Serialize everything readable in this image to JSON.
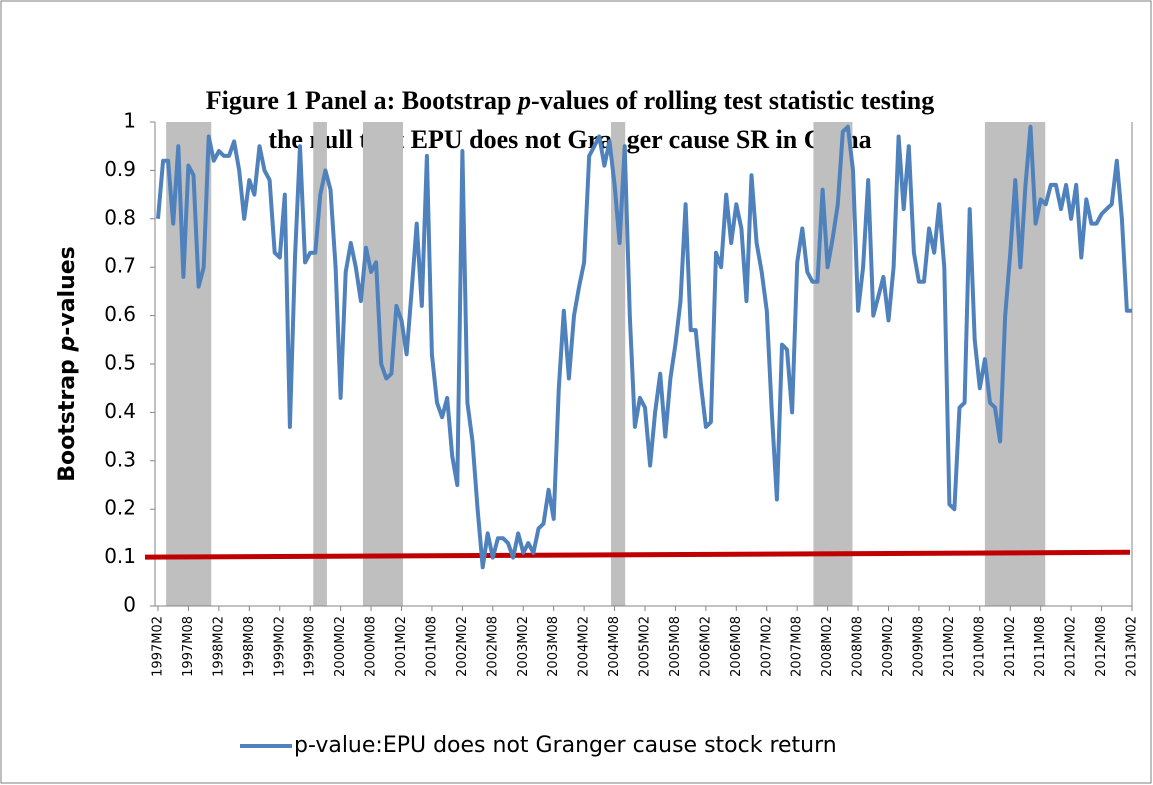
{
  "chart_data": {
    "type": "line",
    "title": [
      [
        "Figure 1 Panel a: Bootstrap ",
        "p",
        "-values of rolling test statistic testing"
      ],
      [
        "the null that EPU does not Granger cause SR in China"
      ]
    ],
    "y_label": [
      "Bootstrap ",
      "p",
      "-values"
    ],
    "categories": [
      "1997M02",
      null,
      null,
      null,
      null,
      null,
      "1997M08",
      null,
      null,
      null,
      null,
      null,
      "1998M02",
      null,
      null,
      null,
      null,
      null,
      "1998M08",
      null,
      null,
      null,
      null,
      null,
      "1999M02",
      null,
      null,
      null,
      null,
      null,
      "1999M08",
      null,
      null,
      null,
      null,
      null,
      "2000M02",
      null,
      null,
      null,
      null,
      null,
      "2000M08",
      null,
      null,
      null,
      null,
      null,
      "2001M02",
      null,
      null,
      null,
      null,
      null,
      "2001M08",
      null,
      null,
      null,
      null,
      null,
      "2002M02",
      null,
      null,
      null,
      null,
      null,
      "2002M08",
      null,
      null,
      null,
      null,
      null,
      "2003M02",
      null,
      null,
      null,
      null,
      null,
      "2003M08",
      null,
      null,
      null,
      null,
      null,
      "2004M02",
      null,
      null,
      null,
      null,
      null,
      "2004M08",
      null,
      null,
      null,
      null,
      null,
      "2005M02",
      null,
      null,
      null,
      null,
      null,
      "2005M08",
      null,
      null,
      null,
      null,
      null,
      "2006M02",
      null,
      null,
      null,
      null,
      null,
      "2006M08",
      null,
      null,
      null,
      null,
      null,
      "2007M02",
      null,
      null,
      null,
      null,
      null,
      "2007M08",
      null,
      null,
      null,
      null,
      null,
      "2008M02",
      null,
      null,
      null,
      null,
      null,
      "2008M08",
      null,
      null,
      null,
      null,
      null,
      "2009M02",
      null,
      null,
      null,
      null,
      null,
      "2009M08",
      null,
      null,
      null,
      null,
      null,
      "2010M02",
      null,
      null,
      null,
      null,
      null,
      "2010M08",
      null,
      null,
      null,
      null,
      null,
      "2011M02",
      null,
      null,
      null,
      null,
      null,
      "2011M08",
      null,
      null,
      null,
      null,
      null,
      "2012M02",
      null,
      null,
      null,
      null,
      null,
      "2012M08",
      null,
      null,
      null,
      null,
      null,
      "2013M02"
    ],
    "series": [
      {
        "name": "p-value:EPU does not Granger cause stock return",
        "color": "#4f81bd",
        "values": [
          0.8,
          0.92,
          0.92,
          0.79,
          0.95,
          0.68,
          0.91,
          0.89,
          0.66,
          0.7,
          0.97,
          0.92,
          0.94,
          0.93,
          0.93,
          0.96,
          0.9,
          0.8,
          0.88,
          0.85,
          0.95,
          0.9,
          0.88,
          0.73,
          0.72,
          0.85,
          0.37,
          0.72,
          0.95,
          0.71,
          0.73,
          0.73,
          0.85,
          0.9,
          0.86,
          0.7,
          0.43,
          0.69,
          0.75,
          0.7,
          0.63,
          0.74,
          0.69,
          0.71,
          0.5,
          0.47,
          0.48,
          0.62,
          0.59,
          0.52,
          0.65,
          0.79,
          0.62,
          0.93,
          0.52,
          0.42,
          0.39,
          0.43,
          0.31,
          0.25,
          0.94,
          0.42,
          0.34,
          0.2,
          0.08,
          0.15,
          0.1,
          0.14,
          0.14,
          0.13,
          0.1,
          0.15,
          0.11,
          0.13,
          0.11,
          0.16,
          0.17,
          0.24,
          0.18,
          0.45,
          0.61,
          0.47,
          0.6,
          0.66,
          0.71,
          0.93,
          0.95,
          0.97,
          0.91,
          0.96,
          0.87,
          0.75,
          0.95,
          0.6,
          0.37,
          0.43,
          0.41,
          0.29,
          0.4,
          0.48,
          0.35,
          0.47,
          0.54,
          0.63,
          0.83,
          0.57,
          0.57,
          0.46,
          0.37,
          0.38,
          0.73,
          0.7,
          0.85,
          0.75,
          0.83,
          0.78,
          0.63,
          0.89,
          0.75,
          0.69,
          0.61,
          0.4,
          0.22,
          0.54,
          0.53,
          0.4,
          0.71,
          0.78,
          0.69,
          0.67,
          0.67,
          0.86,
          0.7,
          0.76,
          0.83,
          0.98,
          0.99,
          0.9,
          0.61,
          0.7,
          0.88,
          0.6,
          0.64,
          0.68,
          0.59,
          0.7,
          0.97,
          0.82,
          0.95,
          0.73,
          0.67,
          0.67,
          0.78,
          0.73,
          0.83,
          0.7,
          0.21,
          0.2,
          0.41,
          0.42,
          0.82,
          0.55,
          0.45,
          0.51,
          0.42,
          0.41,
          0.34,
          0.6,
          0.73,
          0.88,
          0.7,
          0.87,
          0.99,
          0.79,
          0.84,
          0.83,
          0.87,
          0.87,
          0.82,
          0.87,
          0.8,
          0.87,
          0.72,
          0.84,
          0.79,
          0.79,
          0.81,
          0.82,
          0.83,
          0.92,
          0.8,
          0.61,
          0.61
        ]
      }
    ],
    "shaded_ranges": [
      [
        1.6,
        10.5
      ],
      [
        30.6,
        33.3
      ],
      [
        40.4,
        48.3
      ],
      [
        89.3,
        92.1
      ],
      [
        129.2,
        136.9
      ],
      [
        163,
        174.9
      ]
    ],
    "shaded_color": "#bfbfbf",
    "threshold": {
      "values": [
        0.101,
        0.111
      ],
      "color": "#c00000"
    },
    "ylim": [
      0,
      1
    ],
    "yticks": [
      0,
      0.1,
      0.2,
      0.3,
      0.4,
      0.5,
      0.6,
      0.7,
      0.8,
      0.9,
      1
    ],
    "grid": false,
    "legend": "bottom"
  }
}
